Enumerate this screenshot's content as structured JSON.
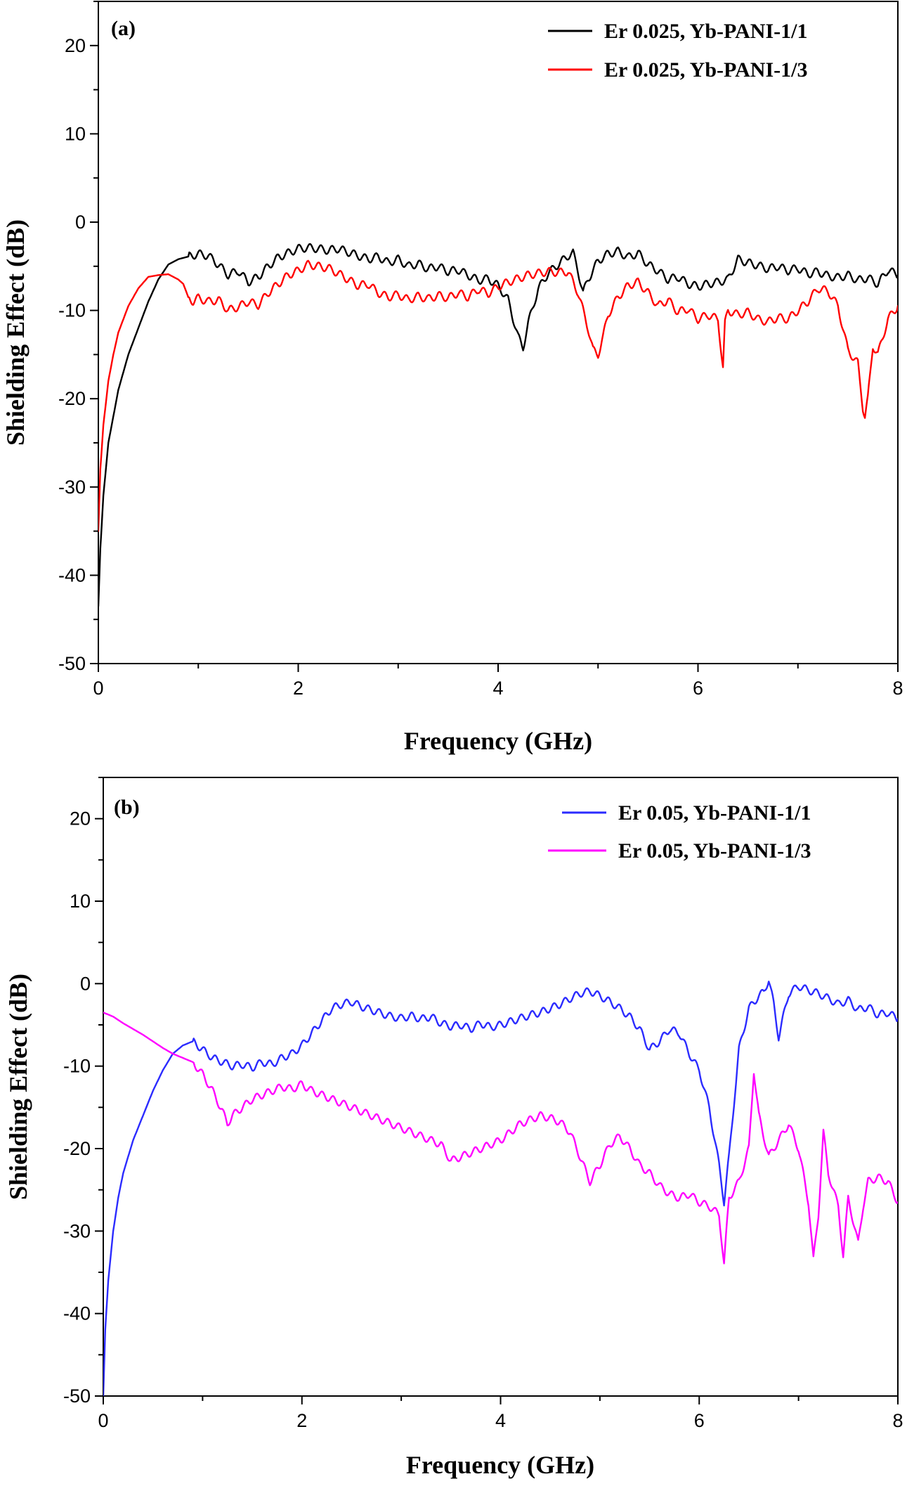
{
  "chart_data": [
    {
      "type": "line",
      "panel_label": "(a)",
      "xlabel": "Frequency (GHz)",
      "ylabel": "Shielding Effect (dB)",
      "xlim": [
        0,
        8
      ],
      "ylim": [
        -50,
        25
      ],
      "xticks": [
        0,
        2,
        4,
        6,
        8
      ],
      "yticks": [
        -50,
        -40,
        -30,
        -20,
        -10,
        0,
        10,
        20
      ],
      "legend_position": "top-right",
      "series": [
        {
          "name": "Er 0.025, Yb-PANI-1/1",
          "color": "#000000",
          "x": [
            0.0,
            0.02,
            0.05,
            0.1,
            0.15,
            0.2,
            0.3,
            0.4,
            0.5,
            0.6,
            0.7,
            0.8,
            0.9,
            1.0,
            1.1,
            1.2,
            1.3,
            1.4,
            1.5,
            1.6,
            1.7,
            1.8,
            1.9,
            2.0,
            2.1,
            2.2,
            2.3,
            2.4,
            2.5,
            2.6,
            2.7,
            2.8,
            2.9,
            3.0,
            3.1,
            3.2,
            3.3,
            3.4,
            3.5,
            3.6,
            3.7,
            3.8,
            3.9,
            4.0,
            4.1,
            4.2,
            4.25,
            4.3,
            4.4,
            4.5,
            4.6,
            4.7,
            4.75,
            4.8,
            4.85,
            4.9,
            5.0,
            5.1,
            5.2,
            5.3,
            5.4,
            5.5,
            5.6,
            5.7,
            5.8,
            5.9,
            6.0,
            6.1,
            6.2,
            6.3,
            6.4,
            6.5,
            6.6,
            6.7,
            6.8,
            6.9,
            7.0,
            7.1,
            7.2,
            7.3,
            7.4,
            7.5,
            7.6,
            7.7,
            7.8,
            7.9,
            8.0
          ],
          "values": [
            -43.5,
            -37,
            -31,
            -25,
            -22,
            -19,
            -15,
            -12,
            -9,
            -6.5,
            -4.8,
            -4.2,
            -3.9,
            -3.6,
            -3.8,
            -4.8,
            -6.0,
            -5.5,
            -6.8,
            -6.2,
            -5.0,
            -4.0,
            -3.5,
            -3.0,
            -2.9,
            -3.0,
            -3.2,
            -3.0,
            -3.4,
            -3.8,
            -4.2,
            -3.9,
            -4.6,
            -4.2,
            -5.0,
            -4.7,
            -5.3,
            -5.0,
            -5.6,
            -5.4,
            -6.0,
            -6.6,
            -6.4,
            -7.2,
            -8.8,
            -13.0,
            -14.2,
            -11.5,
            -7.6,
            -5.8,
            -4.8,
            -3.8,
            -3.5,
            -5.5,
            -8.0,
            -6.5,
            -4.4,
            -3.6,
            -3.3,
            -4.0,
            -3.5,
            -4.8,
            -5.5,
            -6.5,
            -6.2,
            -7.0,
            -7.3,
            -7.0,
            -6.8,
            -6.5,
            -4.2,
            -4.6,
            -4.9,
            -5.3,
            -5.0,
            -5.5,
            -5.2,
            -5.9,
            -5.6,
            -6.1,
            -6.3,
            -6.0,
            -6.6,
            -6.3,
            -7.0,
            -5.4,
            -6.0
          ]
        },
        {
          "name": "Er 0.025, Yb-PANI-1/3",
          "color": "#ff0000",
          "x": [
            0.0,
            0.02,
            0.05,
            0.1,
            0.15,
            0.2,
            0.3,
            0.4,
            0.5,
            0.6,
            0.7,
            0.8,
            0.85,
            0.9,
            0.95,
            1.0,
            1.1,
            1.2,
            1.3,
            1.4,
            1.5,
            1.6,
            1.7,
            1.8,
            1.9,
            2.0,
            2.1,
            2.2,
            2.3,
            2.4,
            2.5,
            2.6,
            2.7,
            2.8,
            2.9,
            3.0,
            3.1,
            3.2,
            3.3,
            3.4,
            3.5,
            3.6,
            3.7,
            3.8,
            3.9,
            4.0,
            4.1,
            4.2,
            4.3,
            4.4,
            4.5,
            4.6,
            4.7,
            4.8,
            4.9,
            4.95,
            5.0,
            5.05,
            5.1,
            5.2,
            5.3,
            5.4,
            5.5,
            5.6,
            5.7,
            5.8,
            5.9,
            6.0,
            6.1,
            6.2,
            6.25,
            6.27,
            6.3,
            6.4,
            6.5,
            6.6,
            6.7,
            6.8,
            6.9,
            7.0,
            7.1,
            7.2,
            7.3,
            7.4,
            7.5,
            7.6,
            7.65,
            7.67,
            7.7,
            7.75,
            7.8,
            7.9,
            8.0
          ],
          "values": [
            -35,
            -28,
            -23,
            -18,
            -15,
            -12.5,
            -9.5,
            -7.5,
            -6.2,
            -6.0,
            -5.9,
            -6.5,
            -7.0,
            -8.5,
            -9.0,
            -8.6,
            -9.0,
            -8.8,
            -10.0,
            -9.6,
            -9.0,
            -9.4,
            -8.0,
            -7.0,
            -6.0,
            -5.5,
            -4.8,
            -5.0,
            -5.2,
            -5.8,
            -6.5,
            -7.2,
            -7.0,
            -8.0,
            -8.5,
            -8.2,
            -8.8,
            -8.4,
            -8.7,
            -8.3,
            -8.6,
            -8.0,
            -8.5,
            -7.6,
            -8.1,
            -7.3,
            -6.8,
            -6.4,
            -6.0,
            -5.8,
            -5.6,
            -5.7,
            -5.6,
            -8.0,
            -12.0,
            -14.5,
            -15.0,
            -13.0,
            -10.5,
            -8.5,
            -7.2,
            -6.8,
            -8.0,
            -9.5,
            -8.8,
            -10.2,
            -9.8,
            -11.0,
            -10.5,
            -11.0,
            -16.5,
            -11.5,
            -10.0,
            -10.5,
            -10.2,
            -11.0,
            -11.3,
            -10.8,
            -11.0,
            -10.0,
            -9.0,
            -7.5,
            -7.8,
            -9.5,
            -14.5,
            -16.0,
            -21.0,
            -22.0,
            -20.0,
            -14.0,
            -15.0,
            -11.0,
            -9.5
          ]
        }
      ]
    },
    {
      "type": "line",
      "panel_label": "(b)",
      "xlabel": "Frequency (GHz)",
      "ylabel": "Shielding Effect (dB)",
      "xlim": [
        0,
        8
      ],
      "ylim": [
        -50,
        25
      ],
      "xticks": [
        0,
        2,
        4,
        6,
        8
      ],
      "yticks": [
        -50,
        -40,
        -30,
        -20,
        -10,
        0,
        10,
        20
      ],
      "legend_position": "top-right",
      "series": [
        {
          "name": "Er 0.05, Yb-PANI-1/1",
          "color": "#2b2bff",
          "x": [
            0.0,
            0.02,
            0.05,
            0.1,
            0.15,
            0.2,
            0.3,
            0.4,
            0.5,
            0.6,
            0.7,
            0.8,
            0.9,
            1.0,
            1.1,
            1.2,
            1.3,
            1.4,
            1.5,
            1.6,
            1.7,
            1.8,
            1.9,
            2.0,
            2.1,
            2.2,
            2.3,
            2.4,
            2.5,
            2.6,
            2.7,
            2.8,
            2.9,
            3.0,
            3.1,
            3.2,
            3.3,
            3.4,
            3.5,
            3.6,
            3.7,
            3.8,
            3.9,
            4.0,
            4.1,
            4.2,
            4.3,
            4.4,
            4.5,
            4.6,
            4.7,
            4.8,
            4.9,
            5.0,
            5.1,
            5.2,
            5.3,
            5.4,
            5.5,
            5.6,
            5.7,
            5.8,
            5.9,
            6.0,
            6.1,
            6.2,
            6.25,
            6.3,
            6.4,
            6.5,
            6.6,
            6.65,
            6.7,
            6.75,
            6.8,
            6.9,
            7.0,
            7.1,
            7.2,
            7.3,
            7.4,
            7.5,
            7.6,
            7.7,
            7.8,
            7.9,
            8.0
          ],
          "values": [
            -50,
            -42,
            -36,
            -30,
            -26,
            -23,
            -19,
            -16,
            -13,
            -10.5,
            -8.5,
            -7.5,
            -7.0,
            -8.0,
            -9.0,
            -9.5,
            -10.0,
            -9.8,
            -10.2,
            -9.5,
            -9.8,
            -9.0,
            -8.5,
            -7.5,
            -6.0,
            -4.5,
            -3.0,
            -2.5,
            -2.2,
            -2.8,
            -3.2,
            -3.6,
            -4.0,
            -4.2,
            -3.9,
            -4.3,
            -4.0,
            -4.8,
            -5.2,
            -5.0,
            -5.5,
            -4.8,
            -5.3,
            -5.0,
            -4.6,
            -4.2,
            -3.8,
            -3.5,
            -3.0,
            -2.5,
            -1.8,
            -1.2,
            -0.9,
            -1.5,
            -2.2,
            -3.0,
            -4.0,
            -5.5,
            -8.0,
            -7.0,
            -5.5,
            -6.0,
            -8.5,
            -10.5,
            -15.0,
            -22.0,
            -26.5,
            -21.0,
            -8.0,
            -3.0,
            -1.5,
            -1.0,
            0.5,
            -2.5,
            -6.5,
            -1.2,
            -0.3,
            -0.8,
            -1.2,
            -1.8,
            -2.5,
            -2.0,
            -3.2,
            -2.8,
            -3.8,
            -3.5,
            -4.3
          ]
        },
        {
          "name": "Er 0.05, Yb-PANI-1/3",
          "color": "#ff00ff",
          "x": [
            0.0,
            0.1,
            0.2,
            0.3,
            0.4,
            0.5,
            0.6,
            0.7,
            0.8,
            0.9,
            1.0,
            1.1,
            1.2,
            1.25,
            1.3,
            1.4,
            1.5,
            1.6,
            1.7,
            1.8,
            1.9,
            2.0,
            2.1,
            2.2,
            2.3,
            2.4,
            2.5,
            2.6,
            2.7,
            2.8,
            2.9,
            3.0,
            3.1,
            3.2,
            3.3,
            3.4,
            3.5,
            3.6,
            3.7,
            3.8,
            3.9,
            4.0,
            4.1,
            4.2,
            4.3,
            4.4,
            4.5,
            4.6,
            4.7,
            4.8,
            4.9,
            5.0,
            5.1,
            5.2,
            5.3,
            5.4,
            5.5,
            5.6,
            5.7,
            5.8,
            5.9,
            6.0,
            6.1,
            6.2,
            6.25,
            6.3,
            6.4,
            6.5,
            6.55,
            6.6,
            6.7,
            6.8,
            6.9,
            7.0,
            7.1,
            7.15,
            7.2,
            7.25,
            7.3,
            7.4,
            7.45,
            7.5,
            7.6,
            7.65,
            7.7,
            7.8,
            7.9,
            8.0
          ],
          "values": [
            -3.5,
            -4.0,
            -4.8,
            -5.5,
            -6.2,
            -7.0,
            -7.8,
            -8.5,
            -9.0,
            -9.5,
            -11.0,
            -13.0,
            -15.5,
            -17.0,
            -16.0,
            -15.0,
            -14.0,
            -13.5,
            -13.0,
            -12.5,
            -12.8,
            -12.2,
            -13.0,
            -13.5,
            -14.0,
            -14.5,
            -15.0,
            -15.5,
            -16.0,
            -16.5,
            -17.0,
            -17.5,
            -18.0,
            -18.5,
            -19.0,
            -19.5,
            -21.5,
            -21.0,
            -20.5,
            -20.0,
            -19.5,
            -19.0,
            -18.0,
            -17.0,
            -16.5,
            -16.0,
            -16.3,
            -16.8,
            -18.0,
            -21.0,
            -24.0,
            -22.0,
            -19.5,
            -18.5,
            -20.0,
            -22.0,
            -23.0,
            -24.5,
            -25.5,
            -26.0,
            -25.5,
            -26.5,
            -27.0,
            -28.0,
            -34.0,
            -26.0,
            -24.0,
            -20.0,
            -10.5,
            -16.0,
            -21.0,
            -19.0,
            -17.0,
            -20.0,
            -26.5,
            -33.5,
            -28.0,
            -18.0,
            -23.0,
            -27.0,
            -33.0,
            -26.0,
            -31.5,
            -27.0,
            -24.0,
            -23.5,
            -24.0,
            -26.5
          ]
        }
      ]
    }
  ]
}
